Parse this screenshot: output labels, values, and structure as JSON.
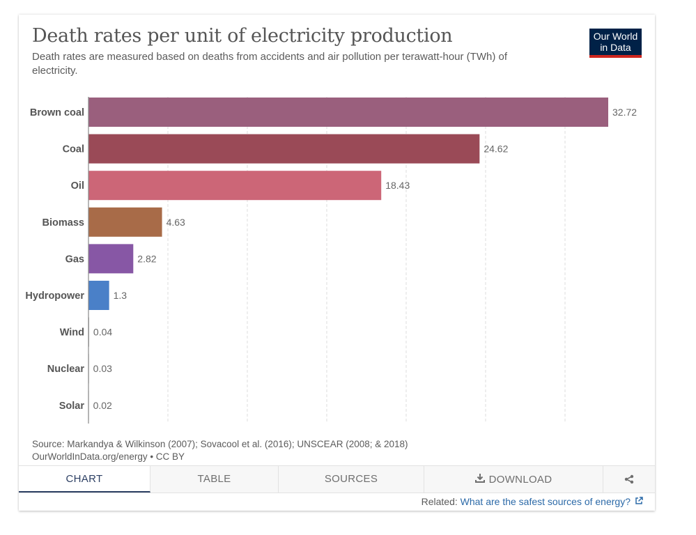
{
  "header": {
    "title": "Death rates per unit of electricity production",
    "subtitle": "Death rates are measured based on deaths from accidents and air pollution per terawatt-hour (TWh) of electricity.",
    "logo_line1": "Our World",
    "logo_line2": "in Data"
  },
  "chart_data": {
    "type": "bar",
    "orientation": "horizontal",
    "categories": [
      "Brown coal",
      "Coal",
      "Oil",
      "Biomass",
      "Gas",
      "Hydropower",
      "Wind",
      "Nuclear",
      "Solar"
    ],
    "values": [
      32.72,
      24.62,
      18.43,
      4.63,
      2.82,
      1.3,
      0.04,
      0.03,
      0.02
    ],
    "value_labels": [
      "32.72",
      "24.62",
      "18.43",
      "4.63",
      "2.82",
      "1.3",
      "0.04",
      "0.03",
      "0.02"
    ],
    "colors": [
      "#9a5f7d",
      "#9a4a57",
      "#cc6677",
      "#a86b48",
      "#8757a5",
      "#4a80c8",
      "#a0a0a0",
      "#a0a0a0",
      "#a0a0a0"
    ],
    "xlim": [
      0,
      35
    ],
    "gridlines": [
      5,
      10,
      15,
      20,
      25,
      30
    ],
    "grid": true,
    "legend": "none"
  },
  "footer": {
    "source": "Source: Markandya & Wilkinson (2007); Sovacool et al. (2016); UNSCEAR (2008; & 2018)",
    "url_license": "OurWorldInData.org/energy • CC BY"
  },
  "tabs": {
    "chart": "CHART",
    "table": "TABLE",
    "sources": "SOURCES",
    "download": "DOWNLOAD",
    "share_icon": "share-icon",
    "download_icon": "download-icon"
  },
  "related": {
    "prefix": "Related:",
    "link": "What are the safest sources of energy?",
    "icon": "external-link-icon"
  }
}
